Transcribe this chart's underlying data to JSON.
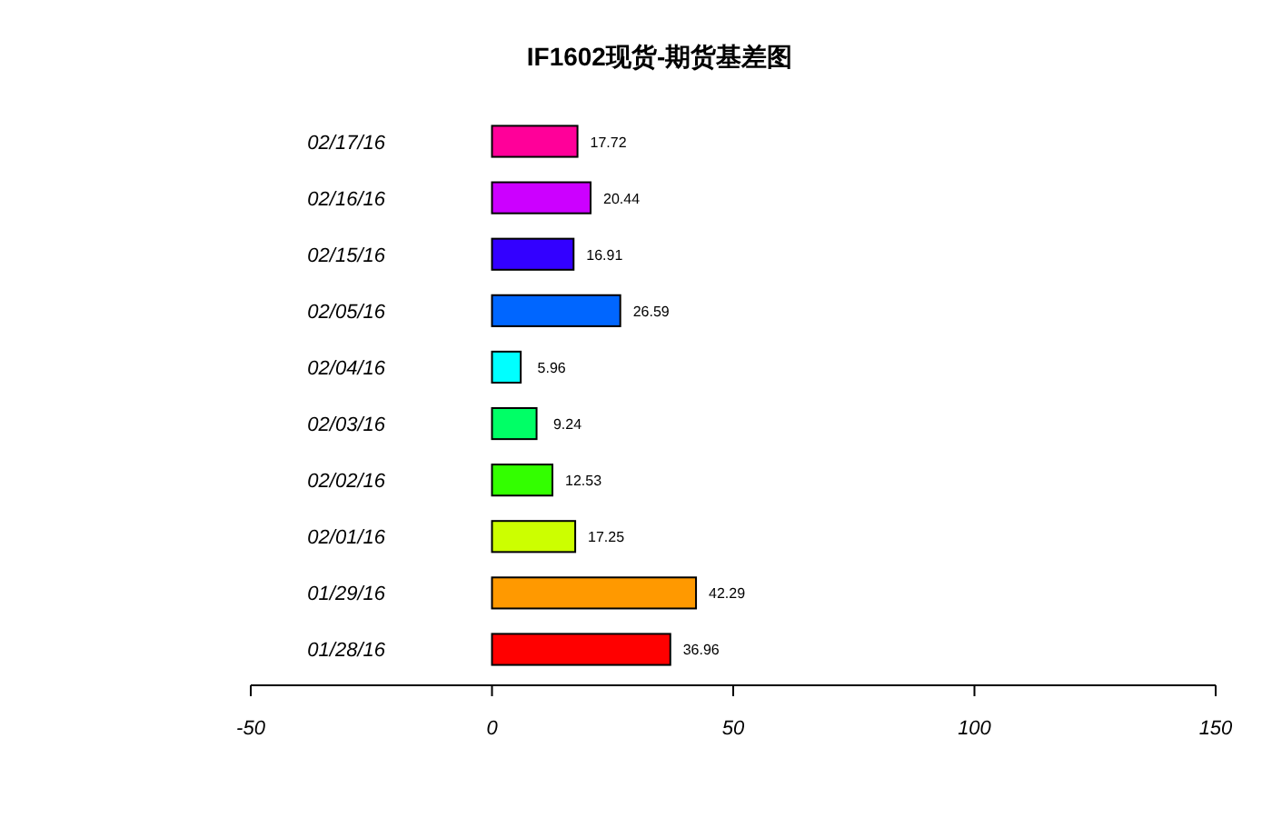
{
  "chart_data": {
    "type": "bar",
    "orientation": "horizontal",
    "title": "IF1602现货-期货基差图",
    "categories": [
      "02/17/16",
      "02/16/16",
      "02/15/16",
      "02/05/16",
      "02/04/16",
      "02/03/16",
      "02/02/16",
      "02/01/16",
      "01/29/16",
      "01/28/16"
    ],
    "values": [
      17.72,
      20.44,
      16.91,
      26.59,
      5.96,
      9.24,
      12.53,
      17.25,
      42.29,
      36.96
    ],
    "colors": [
      "#ff0099",
      "#cc00ff",
      "#3300ff",
      "#0066ff",
      "#00ffff",
      "#00ff66",
      "#33ff00",
      "#ccff00",
      "#ff9900",
      "#ff0000"
    ],
    "xlim": [
      -50,
      150
    ],
    "xticks": [
      -50,
      0,
      50,
      100,
      150
    ],
    "data_labels": true,
    "grid": false
  }
}
